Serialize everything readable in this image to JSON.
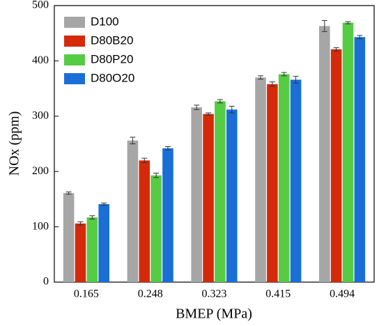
{
  "chart_data": {
    "type": "bar",
    "x_label": "BMEP (MPa)",
    "y_label": "NOx (ppm)",
    "categories": [
      "0.165",
      "0.248",
      "0.323",
      "0.415",
      "0.494"
    ],
    "series": [
      {
        "name": "D100",
        "color": "#a6a6a6",
        "values": [
          161,
          256,
          316,
          370,
          463
        ],
        "errors": [
          2,
          6,
          4,
          3,
          10
        ]
      },
      {
        "name": "D80B20",
        "color": "#d42a0a",
        "values": [
          106,
          220,
          304,
          358,
          421
        ],
        "errors": [
          3,
          4,
          2,
          4,
          3
        ]
      },
      {
        "name": "D80P20",
        "color": "#55cc44",
        "values": [
          117,
          193,
          327,
          376,
          469
        ],
        "errors": [
          3,
          4,
          3,
          3,
          2
        ]
      },
      {
        "name": "D80O20",
        "color": "#1a6fd6",
        "values": [
          141,
          242,
          312,
          366,
          443
        ],
        "errors": [
          2,
          3,
          6,
          6,
          3
        ]
      }
    ],
    "ylim": [
      0,
      500
    ],
    "yticks": [
      0,
      100,
      200,
      300,
      400,
      500
    ],
    "legend": "upper-left"
  }
}
